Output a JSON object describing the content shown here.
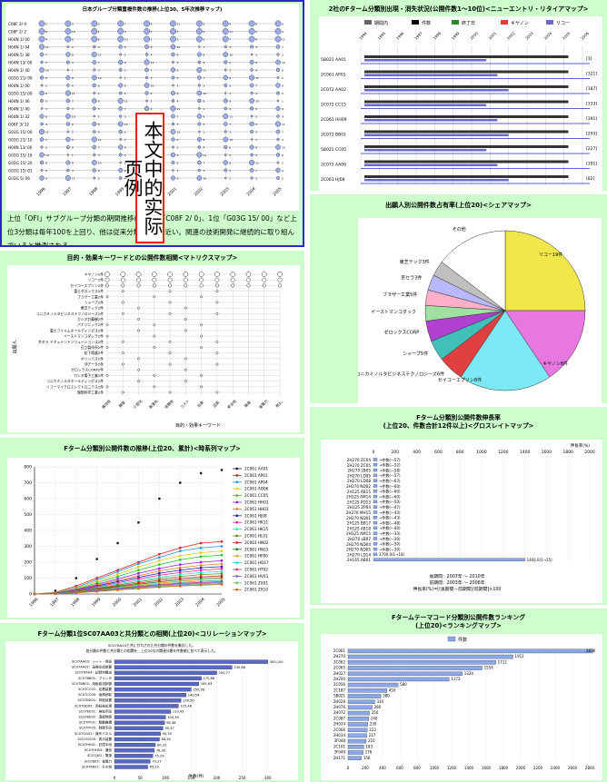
{
  "stamp": "本文中的实际页例",
  "colors": {
    "panel_bg": "#ccffcc",
    "frame": "#2828c8",
    "stamp_border": "#e8231b"
  },
  "panels": {
    "p1": {
      "title": "日本グループ分類重複件数の推移(上位30、5年次推移マップ)",
      "rows": [
        "C08F 2/ 0",
        "C08F 2/ 2",
        "H04N 1/ 00",
        "H04N 1/ 04",
        "H04N 5/ 38",
        "H04N 13/ 00",
        "H04N 1/ 40",
        "G03G 21/ 00",
        "H04N 1/ 00",
        "G03G 15/ 00",
        "H04N 1/ 46",
        "H04N 1/ 40",
        "H04N 1/ 32",
        "G06F 3/ 12",
        "G03G 15/ 00",
        "G03G 21/ 10",
        "H04N 13/ 00",
        "G03G 15/ 16",
        "G03G 15/ 20",
        "G03G 15/ 01",
        "G03G 5/ 06"
      ],
      "cols": [
        "1996",
        "1997",
        "1998",
        "1999",
        "2000",
        "2001",
        "2002",
        "2003",
        "2004",
        "2005"
      ],
      "caption": "上位「OFI」サブグループ分類の期間推移は、1位「C08F 2/ 0」、1位「G03G 15/ 00」など上位3分類は毎年100を上回り、他は従来分類の5倍に近い。上位の分類は2005年以降も大幅に増加しており、関連の技術開発に継続的に取り組んでいると推測される。",
      "caption_visible": "上位「OFI」サブグループ分類の期間推移は、1位「C08F 2/ 0」、1位「G03G 15/ 00」など上位3分類は毎年100を上回り、他は従来分類の5倍に近い。関連の技術開発に継続的に取り組んでいると推測される。"
    },
    "p2": {
      "title": "2社のFターム分類別出現・消失状況(公開件数1〜10位)<ニューエントリ・リタイアマップ>",
      "legend": [
        "期間内",
        "件数",
        "終了日",
        "キヤノン",
        "リコー"
      ],
      "ticks": [
        "1994",
        "1995",
        "1996",
        "1997",
        "1998",
        "1999",
        "2000",
        "2001",
        "2002",
        "2003",
        "2004",
        "2005",
        "2006"
      ],
      "rows": [
        "5B021 AA01",
        "2C061 AP01",
        "2C072 AA02",
        "2C072 CC15",
        "2C061 HH09",
        "2C072 BB01",
        "5B021 CC05",
        "2C072 AA06",
        "2C061 HJ08"
      ],
      "values": [
        "[1]",
        "[321]",
        "[187]",
        "[333]",
        "[391]",
        "[293]",
        "[227]",
        "[391]",
        "[82]"
      ]
    },
    "p3": {
      "title": "出願人別公開件数占有率(上位20)<シェアマップ>",
      "labels": [
        "その他",
        "リコー19件",
        "キヤノン8件",
        "セイコーエプソン8件",
        "コニカミノルタビジネステクノロジーズ6件",
        "シャープ5件",
        "ゼロックスCORP",
        "イーストマンコダック",
        "ブラザー工業5件",
        "京セラ3件",
        "東芝テック3件"
      ]
    },
    "p4": {
      "title": "目的・効果キーワードとの公開件数相関<マトリクスマップ>",
      "rows": [
        "キヤノン2件",
        "リコー2件",
        "セイコーエプソン2件",
        "富士ゼロックス2件",
        "ブラザー工業2件",
        "シャープ2件",
        "東芝テック2件",
        "コニカミノルタビジネステクノロジーズ2件",
        "カシオ計算機2件",
        "パナソニック2件",
        "富士フイルムホールディングス2件",
        "イーストマンコダック2件",
        "京セラ ドキュメントソリューションズ2件",
        "日立製作所2件",
        "松下電器2件",
        "オリンパス2件",
        "沖データ2件",
        "ゼロックスCORP2件",
        "カシオ電子工業2件",
        "コニカミノルタホールディングス2件",
        "リコーマイクロエレクトロニクス2件",
        "理想科学工業2件"
      ],
      "cols": [
        "操作性",
        "精度",
        "小型化",
        "高速化",
        "信頼性",
        "コスト",
        "効率",
        "品質",
        "安全性",
        "簡易",
        "省電力",
        "耐久"
      ],
      "xlabel": "目的・効果キーワード",
      "ylabel": "出願人"
    },
    "p5": {
      "title": "Fターム分類別公開件数の推移(上位20、累計)<時系列マップ>",
      "series": [
        "2C061 AA01",
        "2C061 AP01",
        "2C061 AP04",
        "2C061 AQ06",
        "2C061 CC05",
        "2C061 HH01",
        "2C061 HH03",
        "2C061 HJ08",
        "2C061 HK11",
        "2C061 HK15",
        "2C061 HL01",
        "2C061 HN02",
        "2C061 HN15",
        "2C061 HP00",
        "2C061 HQ17",
        "2C061 HT02",
        "2C061 HV01",
        "2C061 ZX01",
        "2C061 ZX10"
      ],
      "legend_colors": [
        "#1a1a1a",
        "#e61e1e",
        "#1e96e6",
        "#e6c81e",
        "#1ec81e",
        "#9b1ee6",
        "#e67d1e",
        "#1e1ec8",
        "#e61e9b",
        "#1ee6c8",
        "#7d7d1e",
        "#c81e1e",
        "#1e7d1e",
        "#e6a01e",
        "#1ec8e6",
        "#e61e64",
        "#6464e6",
        "#64c864",
        "#c8641e"
      ],
      "xticks": [
        "1996",
        "1997",
        "1998",
        "1999",
        "2000",
        "2001",
        "2002",
        "2003",
        "2004",
        "2005"
      ],
      "yticks": [
        "0",
        "100",
        "200",
        "300",
        "400",
        "500",
        "600",
        "700",
        "800"
      ]
    },
    "p6": {
      "title_line1": "Fターム分類別公開件数伸長率",
      "title_line2": "(上位20、件数合計12件以上)<グロスレイトマップ>",
      "xticks": [
        "0",
        "200",
        "400",
        "600",
        "800",
        "1000",
        "1200",
        "1400",
        "1600",
        "1800",
        "2000"
      ],
      "unit_label": "伸長率(%)",
      "rows": [
        "2H270 ZC04",
        "2H270 ZC05",
        "2H270 LB05",
        "2H270 LD05",
        "2H270 LD08",
        "2H270 ND02",
        "2H125 AB15",
        "2H125 AM14",
        "2H125 PD13",
        "2H125 ZP04",
        "2H270 MH15",
        "2H270 ND01",
        "2H125 BB17",
        "2H125 AB18",
        "2H125 AM15",
        "2H270 LB07",
        "2H270 ND04",
        "2H270 ND05",
        "2H270 LD14",
        "2H145 AB01"
      ],
      "values": [
        -57,
        -52,
        -58,
        -57,
        -63,
        -60,
        -60,
        -60,
        -50,
        -47,
        -43,
        -43,
        -48,
        -40,
        -33,
        -30,
        -30,
        -30,
        -20,
        1400
      ],
      "value_labels": [
        "→件数(—57)",
        "→件数(—52)",
        "→件数(—58)",
        "→件数(—57)",
        "→件数(—63)",
        "→件数(—60)",
        "→件数(—60)",
        "→件数(—60)",
        "→件数(—50)",
        "→件数(—47)",
        "→件数(—43)",
        "→件数(—43)",
        "→件数(—48)",
        "→件数(—40)",
        "→件数(—33)",
        "→件数(—30)",
        "→件数(—30)",
        "→件数(—30)",
        "1700.0(1→18)",
        "1400.0(1→15)"
      ],
      "notes": [
        "後期間：2007年 ～ 2010年",
        "前期間：2003年 ～ 2006年",
        "伸長率(%)=[(後期間－前期間)/前期間]×100"
      ]
    },
    "p7": {
      "title": "Fターム分類1位SC07AA03と共分類との相関(上位20)<コリレーションマップ>",
      "subtitle": [
        "SC07AA03と共に付与された共分類の件数を集計した。",
        "各分類の件数と共分類との相関を、上位20位の関連分類を件数順に並べて表示した。"
      ],
      "rows": [
        "SC07AA03：シート・用紙",
        "SC07AA01：画像形成装置",
        "SC07AA04：記録材搬送",
        "SC07BB01：プリンタ",
        "SC07BB02：用紙給送制御",
        "SC07CC01：定着装置",
        "SC07CC05：画像読取",
        "SC07DD01：排紙装置",
        "SC07DD05：用紙後処理",
        "SC07EE01：検知手段",
        "SC07EE02：温度制御",
        "SC07FF01：駆動機構",
        "SC07FF05：制御手段",
        "SC07GG01：操作パネル",
        "SC07GG05：表示装置",
        "SC07HH01：記憶手段",
        "SC07HH03：通信",
        "SC07JJ01：電源",
        "SC07JJ05：省電力",
        "SC07KK01：その他"
      ],
      "values": [
        300,
        230,
        200,
        170,
        165,
        150,
        140,
        130,
        125,
        110,
        100,
        98,
        95,
        90,
        88,
        80,
        78,
        75,
        70,
        65
      ],
      "value_labels": [
        "300,100",
        "230,86",
        "200,77",
        "170,66",
        "165,63",
        "150,58",
        "140,54",
        "130,50",
        "125,48",
        "110,43",
        "100,39",
        "98,38",
        "95,37",
        "90,35",
        "88,34",
        "80,31",
        "78,30",
        "75,29",
        "70,27",
        "65,25"
      ],
      "xlabel": "件数(件)",
      "xticks": [
        "0",
        "50",
        "100",
        "150",
        "200",
        "250",
        "300"
      ]
    },
    "p8": {
      "title_line1": "Fタームテーマコード分類別公開件数ランキング",
      "title_line2": "(上位20)<ランキングマップ>",
      "legend": "件数",
      "rows": [
        "2C061",
        "2H270",
        "2C062",
        "2C065",
        "2H027",
        "2H200",
        "2C056",
        "2C187",
        "5B021",
        "2H028",
        "2H076",
        "2H072",
        "2C087",
        "2H034",
        "2C066",
        "2H034",
        "3F048",
        "2C101",
        "3F049",
        "2H171"
      ],
      "values": [
        2836,
        1911,
        1712,
        1554,
        1324,
        1172,
        580,
        450,
        380,
        310,
        280,
        250,
        240,
        230,
        223,
        217,
        210,
        183,
        176,
        156
      ],
      "xticks": [
        "0",
        "200",
        "400",
        "600",
        "800",
        "1000",
        "1200",
        "1400",
        "1600",
        "1800",
        "2000",
        "2200",
        "2400",
        "2600",
        "2800"
      ]
    }
  },
  "chart_data": [
    {
      "type": "scatter",
      "title": "日本グループ分類重複件数の推移(上位30、5年次推移マップ)",
      "note": "bubble matrix: rows = classification codes, columns = years, bubble = count"
    },
    {
      "type": "bar",
      "title": "2社のFターム分類別出現・消失状況(公開件数1〜10位)<ニューエントリ・リタイアマップ>",
      "categories": [
        "5B021 AA01",
        "2C061 AP01",
        "2C072 AA02",
        "2C072 CC15",
        "2C061 HH09",
        "2C072 BB01",
        "5B021 CC05",
        "2C072 AA06",
        "2C061 HJ08"
      ],
      "series": [
        {
          "name": "件数",
          "values": [
            1,
            321,
            187,
            333,
            391,
            293,
            227,
            391,
            82
          ]
        }
      ]
    },
    {
      "type": "pie",
      "title": "出願人別公開件数占有率(上位20)<シェアマップ>",
      "categories": [
        "その他",
        "リコー19件",
        "キヤノン8件",
        "セイコーエプソン8件",
        "コニカミノルタビジネステクノロジーズ6件",
        "シャープ5件",
        "ゼロックスCORP",
        "イーストマンコダック",
        "ブラザー工業5件",
        "京セラ3件",
        "東芝テック3件"
      ],
      "values": [
        14,
        24,
        15,
        18,
        5,
        4,
        4,
        3,
        3,
        3,
        3
      ]
    },
    {
      "type": "scatter",
      "title": "目的・効果キーワードとの公開件数相関<マトリクスマップ>",
      "xlabel": "目的・効果キーワード",
      "ylabel": "出願人"
    },
    {
      "type": "line",
      "title": "Fターム分類別公開件数の推移(上位20、累計)<時系列マップ>",
      "categories": [
        "1996",
        "1997",
        "1998",
        "1999",
        "2000",
        "2001",
        "2002",
        "2003",
        "2004",
        "2005"
      ],
      "series": [
        {
          "name": "2C061 AA01",
          "values": [
            0,
            20,
            100,
            220,
            320,
            450,
            600,
            700,
            760,
            780
          ]
        },
        {
          "name": "2C061 AP01",
          "values": [
            0,
            10,
            50,
            100,
            150,
            200,
            250,
            290,
            320,
            330
          ]
        },
        {
          "name": "2C061 AP04",
          "values": [
            0,
            8,
            40,
            90,
            140,
            190,
            230,
            270,
            290,
            300
          ]
        },
        {
          "name": "2C061 AQ06",
          "values": [
            0,
            6,
            35,
            80,
            125,
            170,
            210,
            240,
            260,
            270
          ]
        },
        {
          "name": "2C061 CC05",
          "values": [
            0,
            5,
            30,
            70,
            110,
            150,
            185,
            215,
            235,
            245
          ]
        },
        {
          "name": "2C061 HH01",
          "values": [
            0,
            5,
            28,
            60,
            95,
            130,
            160,
            185,
            200,
            210
          ]
        },
        {
          "name": "2C061 HH03",
          "values": [
            0,
            4,
            25,
            55,
            85,
            115,
            145,
            165,
            180,
            190
          ]
        },
        {
          "name": "2C061 HJ08",
          "values": [
            0,
            4,
            22,
            50,
            78,
            105,
            130,
            150,
            165,
            172
          ]
        },
        {
          "name": "2C061 HK11",
          "values": [
            0,
            3,
            20,
            45,
            70,
            95,
            118,
            135,
            150,
            158
          ]
        },
        {
          "name": "2C061 HK15",
          "values": [
            0,
            3,
            18,
            40,
            63,
            85,
            105,
            122,
            135,
            142
          ]
        },
        {
          "name": "2C061 HL01",
          "values": [
            0,
            3,
            16,
            36,
            56,
            76,
            95,
            110,
            122,
            128
          ]
        },
        {
          "name": "2C061 HN02",
          "values": [
            0,
            2,
            15,
            32,
            50,
            68,
            85,
            98,
            108,
            114
          ]
        },
        {
          "name": "2C061 HN15",
          "values": [
            0,
            2,
            13,
            29,
            45,
            61,
            76,
            88,
            97,
            102
          ]
        },
        {
          "name": "2C061 HP00",
          "values": [
            0,
            2,
            12,
            26,
            40,
            55,
            68,
            79,
            87,
            92
          ]
        },
        {
          "name": "2C061 HQ17",
          "values": [
            0,
            2,
            11,
            24,
            37,
            50,
            62,
            72,
            80,
            85
          ]
        },
        {
          "name": "2C061 HT02",
          "values": [
            0,
            1,
            10,
            22,
            34,
            46,
            57,
            66,
            73,
            78
          ]
        },
        {
          "name": "2C061 HV01",
          "values": [
            0,
            1,
            9,
            20,
            31,
            42,
            52,
            60,
            67,
            72
          ]
        },
        {
          "name": "2C061 ZX01",
          "values": [
            0,
            1,
            8,
            18,
            28,
            38,
            47,
            55,
            61,
            66
          ]
        },
        {
          "name": "2C061 ZX10",
          "values": [
            0,
            1,
            7,
            16,
            25,
            34,
            43,
            50,
            56,
            60
          ]
        }
      ],
      "ylim": [
        0,
        800
      ]
    },
    {
      "type": "bar",
      "title": "Fターム分類別公開件数伸長率 (上位20、件数合計12件以上)<グロスレイトマップ>",
      "categories": [
        "2H270 ZC04",
        "2H270 ZC05",
        "2H270 LB05",
        "2H270 LD05",
        "2H270 LD08",
        "2H270 ND02",
        "2H125 AB15",
        "2H125 AM14",
        "2H125 PD13",
        "2H125 ZP04",
        "2H270 MH15",
        "2H270 ND01",
        "2H125 BB17",
        "2H125 AB18",
        "2H125 AM15",
        "2H270 LB07",
        "2H270 ND04",
        "2H270 ND05",
        "2H270 LD14",
        "2H145 AB01"
      ],
      "values": [
        -57,
        -52,
        -58,
        -57,
        -63,
        -60,
        -60,
        -60,
        -50,
        -47,
        -43,
        -43,
        -48,
        -40,
        -33,
        -30,
        -30,
        -30,
        -20,
        1400
      ],
      "xlim": [
        0,
        2000
      ]
    },
    {
      "type": "bar",
      "title": "Fターム分類1位SC07AA03と共分類との相関(上位20)<コリレーションマップ>",
      "values": [
        300,
        230,
        200,
        170,
        165,
        150,
        140,
        130,
        125,
        110,
        100,
        98,
        95,
        90,
        88,
        80,
        78,
        75,
        70,
        65
      ],
      "xlabel": "件数(件)",
      "xlim": [
        0,
        320
      ]
    },
    {
      "type": "bar",
      "title": "Fタームテーマコード分類別公開件数ランキング (上位20)<ランキングマップ>",
      "categories": [
        "2C061",
        "2H270",
        "2C062",
        "2C065",
        "2H027",
        "2H200",
        "2C056",
        "2C187",
        "5B021",
        "2H028",
        "2H076",
        "2H072",
        "2C087",
        "2H034",
        "2C066",
        "2H034",
        "3F048",
        "2C101",
        "3F049",
        "2H171"
      ],
      "series": [
        {
          "name": "件数",
          "values": [
            2836,
            1911,
            1712,
            1554,
            1324,
            1172,
            580,
            450,
            380,
            310,
            280,
            250,
            240,
            230,
            223,
            217,
            210,
            183,
            176,
            156
          ]
        }
      ],
      "xlim": [
        0,
        2800
      ]
    }
  ]
}
